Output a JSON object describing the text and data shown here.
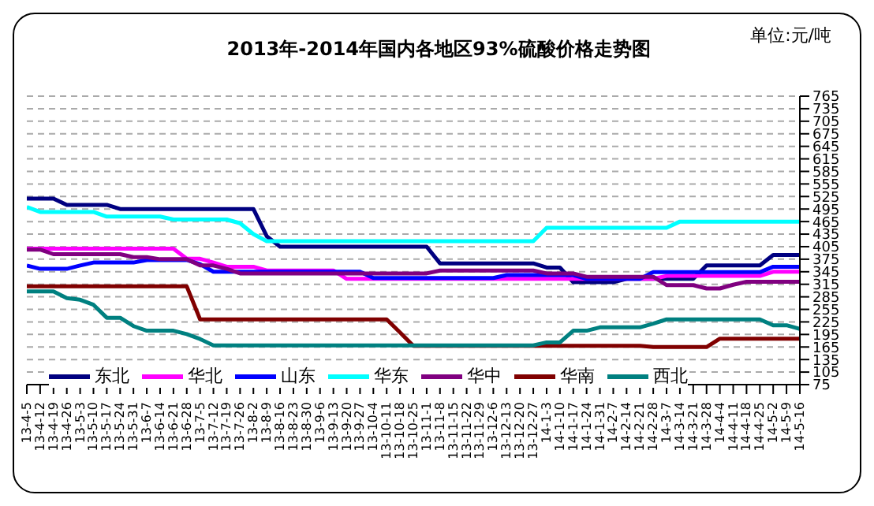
{
  "chart_data": {
    "type": "line",
    "title": "2013年-2014年国内各地区93%硫酸价格走势图",
    "annotations": [
      "单位:元/吨"
    ],
    "categories": [
      "13-4-5",
      "13-4-12",
      "13-4-19",
      "13-4-26",
      "13-5-3",
      "13-5-10",
      "13-5-17",
      "13-5-24",
      "13-5-31",
      "13-6-7",
      "13-6-14",
      "13-6-21",
      "13-6-28",
      "13-7-5",
      "13-7-12",
      "13-7-19",
      "13-7-26",
      "13-8-2",
      "13-8-9",
      "13-8-16",
      "13-8-23",
      "13-8-30",
      "13-9-6",
      "13-9-13",
      "13-9-20",
      "13-9-27",
      "13-10-4",
      "13-10-11",
      "13-10-18",
      "13-10-25",
      "13-11-1",
      "13-11-8",
      "13-11-15",
      "13-11-22",
      "13-11-29",
      "13-12-6",
      "13-12-13",
      "13-12-20",
      "13-12-27",
      "14-1-3",
      "14-1-10",
      "14-1-17",
      "14-1-24",
      "14-1-31",
      "14-2-7",
      "14-2-14",
      "14-2-21",
      "14-2-28",
      "14-3-7",
      "14-3-14",
      "14-3-21",
      "14-3-28",
      "14-4-4",
      "14-4-11",
      "14-4-18",
      "14-4-25",
      "14-5-2",
      "14-5-9",
      "14-5-16"
    ],
    "series": [
      {
        "name": "东北",
        "color": "#000080",
        "values": [
          520,
          520,
          520,
          505,
          505,
          505,
          505,
          495,
          495,
          495,
          495,
          495,
          495,
          495,
          495,
          495,
          495,
          495,
          430,
          405,
          405,
          405,
          405,
          405,
          405,
          405,
          405,
          405,
          405,
          405,
          405,
          365,
          365,
          365,
          365,
          365,
          365,
          365,
          365,
          355,
          355,
          320,
          320,
          320,
          320,
          328,
          328,
          328,
          328,
          328,
          328,
          360,
          360,
          360,
          360,
          360,
          385,
          385,
          385
        ]
      },
      {
        "name": "华北",
        "color": "#ff00ff",
        "values": [
          400,
          400,
          400,
          400,
          400,
          400,
          400,
          400,
          400,
          400,
          400,
          400,
          376,
          376,
          367,
          357,
          357,
          357,
          348,
          348,
          348,
          348,
          348,
          348,
          328,
          328,
          328,
          328,
          328,
          328,
          328,
          328,
          328,
          328,
          328,
          328,
          328,
          328,
          328,
          328,
          328,
          328,
          328,
          328,
          328,
          328,
          328,
          328,
          335,
          335,
          335,
          335,
          335,
          335,
          335,
          335,
          345,
          345,
          345
        ]
      },
      {
        "name": "山东",
        "color": "#0000ff",
        "values": [
          360,
          352,
          352,
          352,
          360,
          367,
          367,
          367,
          367,
          373,
          373,
          373,
          373,
          363,
          345,
          345,
          345,
          345,
          345,
          345,
          345,
          345,
          345,
          345,
          345,
          345,
          330,
          330,
          330,
          330,
          330,
          330,
          330,
          330,
          330,
          330,
          337,
          337,
          337,
          337,
          337,
          337,
          328,
          328,
          328,
          328,
          328,
          344,
          344,
          344,
          344,
          344,
          344,
          344,
          344,
          344,
          357,
          357,
          357
        ]
      },
      {
        "name": "华东",
        "color": "#00ffff",
        "values": [
          500,
          488,
          488,
          488,
          488,
          488,
          477,
          477,
          477,
          477,
          477,
          470,
          470,
          470,
          470,
          470,
          461,
          435,
          418,
          418,
          418,
          418,
          418,
          418,
          418,
          418,
          418,
          418,
          418,
          418,
          418,
          418,
          418,
          418,
          418,
          418,
          418,
          418,
          418,
          450,
          450,
          450,
          450,
          450,
          450,
          450,
          450,
          450,
          450,
          465,
          465,
          465,
          465,
          465,
          465,
          465,
          465,
          465,
          465
        ]
      },
      {
        "name": "华中",
        "color": "#800080",
        "values": [
          398,
          398,
          387,
          387,
          387,
          387,
          387,
          387,
          380,
          380,
          375,
          375,
          375,
          360,
          360,
          352,
          341,
          341,
          341,
          341,
          341,
          341,
          341,
          341,
          341,
          341,
          341,
          341,
          341,
          341,
          341,
          348,
          348,
          348,
          348,
          348,
          348,
          348,
          348,
          341,
          341,
          341,
          333,
          333,
          333,
          333,
          333,
          333,
          313,
          313,
          313,
          305,
          305,
          314,
          321,
          321,
          321,
          321,
          321
        ]
      },
      {
        "name": "华南",
        "color": "#800000",
        "values": [
          310,
          310,
          310,
          310,
          310,
          310,
          310,
          310,
          310,
          310,
          310,
          310,
          310,
          231,
          231,
          231,
          231,
          231,
          231,
          231,
          231,
          231,
          231,
          231,
          231,
          231,
          231,
          231,
          200,
          168,
          168,
          168,
          168,
          168,
          168,
          168,
          168,
          168,
          168,
          168,
          168,
          168,
          168,
          168,
          168,
          168,
          168,
          165,
          165,
          165,
          165,
          165,
          185,
          185,
          185,
          185,
          185,
          185,
          185
        ]
      },
      {
        "name": "西北",
        "color": "#008080",
        "values": [
          298,
          298,
          298,
          282,
          278,
          266,
          235,
          235,
          215,
          204,
          204,
          204,
          196,
          184,
          169,
          169,
          169,
          169,
          169,
          169,
          169,
          169,
          169,
          169,
          169,
          169,
          169,
          169,
          169,
          169,
          169,
          169,
          169,
          169,
          169,
          169,
          169,
          169,
          169,
          176,
          176,
          204,
          204,
          212,
          212,
          212,
          212,
          221,
          231,
          231,
          231,
          231,
          231,
          231,
          231,
          231,
          217,
          217,
          208
        ]
      }
    ],
    "ylim": [
      75,
      765
    ],
    "yticks": [
      75,
      105,
      135,
      165,
      195,
      225,
      255,
      285,
      315,
      345,
      375,
      405,
      435,
      465,
      495,
      525,
      555,
      585,
      615,
      645,
      675,
      705,
      735,
      765
    ],
    "grid": "y",
    "legend": "bottom",
    "marker": "none",
    "line_style": "solid"
  }
}
